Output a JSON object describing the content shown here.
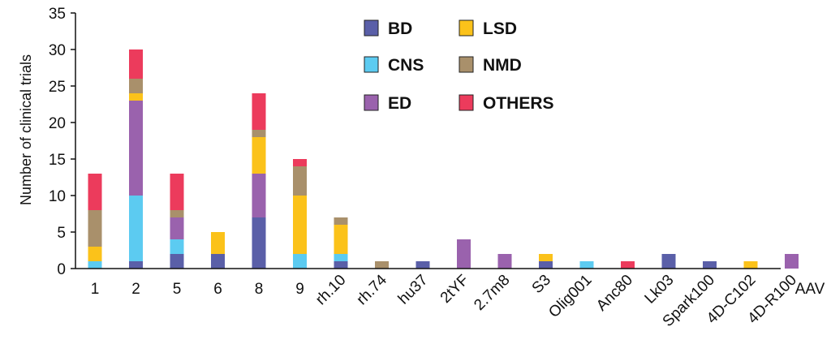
{
  "chart_data": {
    "type": "bar",
    "stacked": true,
    "categories": [
      "1",
      "2",
      "5",
      "6",
      "8",
      "9",
      "rh.10",
      "rh.74",
      "hu37",
      "2tYF",
      "2.7m8",
      "S3",
      "Olig001",
      "Anc80",
      "Lk03",
      "Spark100",
      "4D-C102",
      "4D-R100"
    ],
    "series": [
      {
        "name": "BD",
        "color": "#5a5fa8",
        "values": [
          0,
          1,
          2,
          2,
          7,
          0,
          1,
          0,
          1,
          0,
          0,
          1,
          0,
          0,
          2,
          1,
          0,
          0
        ]
      },
      {
        "name": "CNS",
        "color": "#5ccbf1",
        "values": [
          1,
          9,
          2,
          0,
          0,
          2,
          1,
          0,
          0,
          0,
          0,
          0,
          1,
          0,
          0,
          0,
          0,
          0
        ]
      },
      {
        "name": "ED",
        "color": "#9a62ad",
        "values": [
          0,
          13,
          3,
          0,
          6,
          0,
          0,
          0,
          0,
          4,
          2,
          0,
          0,
          0,
          0,
          0,
          0,
          2
        ]
      },
      {
        "name": "LSD",
        "color": "#fbc21a",
        "values": [
          2,
          1,
          0,
          3,
          5,
          8,
          4,
          0,
          0,
          0,
          0,
          1,
          0,
          0,
          0,
          0,
          1,
          0
        ]
      },
      {
        "name": "NMD",
        "color": "#a9906b",
        "values": [
          5,
          2,
          1,
          0,
          1,
          4,
          1,
          1,
          0,
          0,
          0,
          0,
          0,
          0,
          0,
          0,
          0,
          0
        ]
      },
      {
        "name": "OTHERS",
        "color": "#ec3b5c",
        "values": [
          5,
          4,
          5,
          0,
          5,
          1,
          0,
          0,
          0,
          0,
          0,
          0,
          0,
          1,
          0,
          0,
          0,
          0
        ]
      }
    ],
    "xlabel": "AAV",
    "ylabel": "Number of clinical trials",
    "ylim": [
      0,
      35
    ],
    "yticks": [
      "0",
      "5",
      "10",
      "15",
      "20",
      "25",
      "30",
      "35"
    ],
    "grid": false,
    "legend_position": "top"
  }
}
